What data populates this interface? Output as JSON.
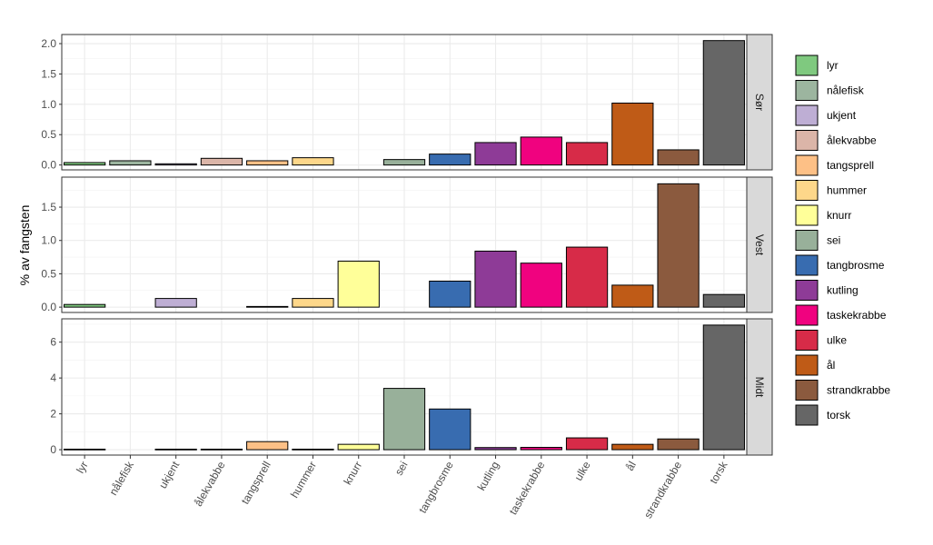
{
  "chart_data": {
    "type": "bar",
    "ylabel": "% av fangsten",
    "xlabel": "",
    "categories": [
      "lyr",
      "nålefisk",
      "ukjent",
      "ålekvabbe",
      "tangsprell",
      "hummer",
      "knurr",
      "sei",
      "tangbrosme",
      "kutling",
      "taskekrabbe",
      "ulke",
      "ål",
      "strandkrabbe",
      "torsk"
    ],
    "colors": {
      "lyr": "#7fc97f",
      "nålefisk": "#9cb59f",
      "ukjent": "#beaed4",
      "ålekvabbe": "#dbb5a8",
      "tangsprell": "#fdc086",
      "hummer": "#fdd78a",
      "knurr": "#ffff99",
      "sei": "#98b09a",
      "tangbrosme": "#386cb0",
      "kutling": "#8e3b97",
      "taskekrabbe": "#f0027f",
      "ulke": "#d72b48",
      "ål": "#bf5b17",
      "strandkrabbe": "#8b5a3e",
      "torsk": "#666666"
    },
    "legend": {
      "position": "right",
      "entries": [
        "lyr",
        "nålefisk",
        "ukjent",
        "ålekvabbe",
        "tangsprell",
        "hummer",
        "knurr",
        "sei",
        "tangbrosme",
        "kutling",
        "taskekrabbe",
        "ulke",
        "ål",
        "strandkrabbe",
        "torsk"
      ]
    },
    "panels": [
      {
        "name": "Sør",
        "ylim": [
          -0.08,
          2.15
        ],
        "yticks": [
          0.0,
          0.5,
          1.0,
          1.5,
          2.0
        ],
        "ytick_labels": [
          "0.0",
          "0.5",
          "1.0",
          "1.5",
          "2.0"
        ],
        "values": [
          0.04,
          0.07,
          0.02,
          0.11,
          0.07,
          0.12,
          0,
          0.09,
          0.18,
          0.37,
          0.46,
          0.37,
          1.02,
          0.25,
          2.05
        ]
      },
      {
        "name": "Vest",
        "ylim": [
          -0.08,
          1.95
        ],
        "yticks": [
          0.0,
          0.5,
          1.0,
          1.5
        ],
        "ytick_labels": [
          "0.0",
          "0.5",
          "1.0",
          "1.5"
        ],
        "values": [
          0.04,
          0,
          0.13,
          0,
          0.01,
          0.13,
          0.69,
          0,
          0.39,
          0.84,
          0.66,
          0.9,
          0.33,
          1.85,
          0.19
        ]
      },
      {
        "name": "Midt",
        "ylim": [
          -0.3,
          7.3
        ],
        "yticks": [
          0,
          2,
          4,
          6
        ],
        "ytick_labels": [
          "0",
          "2",
          "4",
          "6"
        ],
        "values": [
          0.03,
          0,
          0.03,
          0.03,
          0.45,
          0.03,
          0.3,
          3.42,
          2.27,
          0.12,
          0.13,
          0.66,
          0.3,
          0.6,
          6.95
        ]
      }
    ]
  }
}
